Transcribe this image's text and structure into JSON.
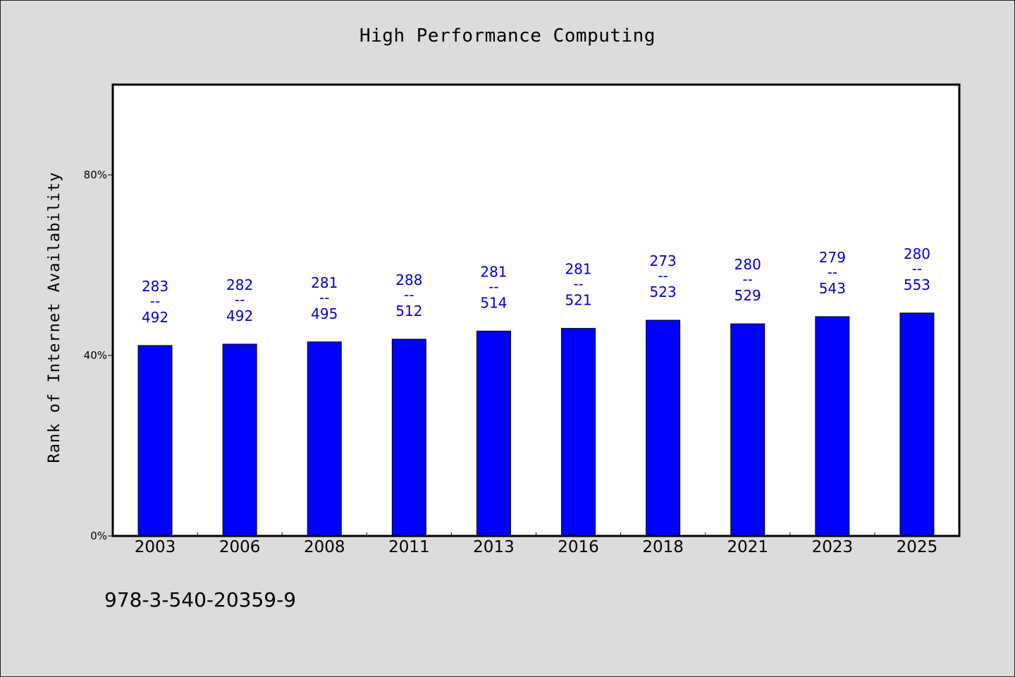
{
  "chart_data": {
    "type": "bar",
    "title": "High Performance Computing",
    "xlabel": "",
    "ylabel": "Rank of Internet Availability",
    "categories": [
      "2003",
      "2006",
      "2008",
      "2011",
      "2013",
      "2016",
      "2018",
      "2021",
      "2023",
      "2025"
    ],
    "values": [
      42.2,
      42.5,
      43.0,
      43.6,
      45.4,
      46.0,
      47.8,
      47.0,
      48.6,
      49.4
    ],
    "top_labels": [
      "283",
      "282",
      "281",
      "288",
      "281",
      "281",
      "273",
      "280",
      "279",
      "280"
    ],
    "bottom_labels": [
      "492",
      "492",
      "495",
      "512",
      "514",
      "521",
      "523",
      "529",
      "543",
      "553"
    ],
    "separator": "--",
    "ylim": [
      0,
      100
    ],
    "yticks": [
      0,
      40,
      80
    ],
    "ytick_labels": [
      "0%",
      "40%",
      "80%"
    ],
    "grid": false,
    "bar_color": "#0000ff",
    "label_color": "#0000cc"
  },
  "footer": {
    "code": "978-3-540-20359-9"
  }
}
